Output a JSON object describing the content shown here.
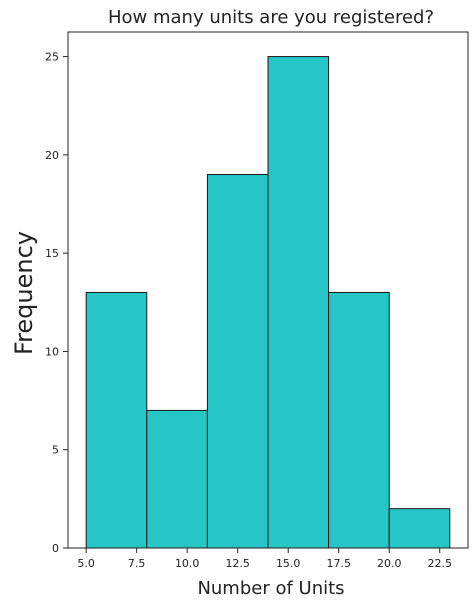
{
  "chart_data": {
    "type": "bar",
    "title": "How many units are you registered?",
    "xlabel": "Number of Units",
    "ylabel": "Frequency",
    "bins": [
      {
        "start": 5.0,
        "end": 8.0,
        "value": 13
      },
      {
        "start": 8.0,
        "end": 11.0,
        "value": 7
      },
      {
        "start": 11.0,
        "end": 14.0,
        "value": 19
      },
      {
        "start": 14.0,
        "end": 17.0,
        "value": 25
      },
      {
        "start": 17.0,
        "end": 20.0,
        "value": 13
      },
      {
        "start": 20.0,
        "end": 23.0,
        "value": 2
      }
    ],
    "xlim": [
      4.1,
      23.9
    ],
    "ylim": [
      0,
      26.25
    ],
    "xticks": [
      5.0,
      7.5,
      10.0,
      12.5,
      15.0,
      17.5,
      20.0,
      22.5
    ],
    "xtick_labels": [
      "5.0",
      "7.5",
      "10.0",
      "12.5",
      "15.0",
      "17.5",
      "20.0",
      "22.5"
    ],
    "yticks": [
      0,
      5,
      10,
      15,
      20,
      25
    ],
    "ytick_labels": [
      "0",
      "5",
      "10",
      "15",
      "20",
      "25"
    ],
    "bar_color": "#26c6c6",
    "edge_color": "#1a1a1a",
    "grid": false,
    "legend": "none"
  }
}
